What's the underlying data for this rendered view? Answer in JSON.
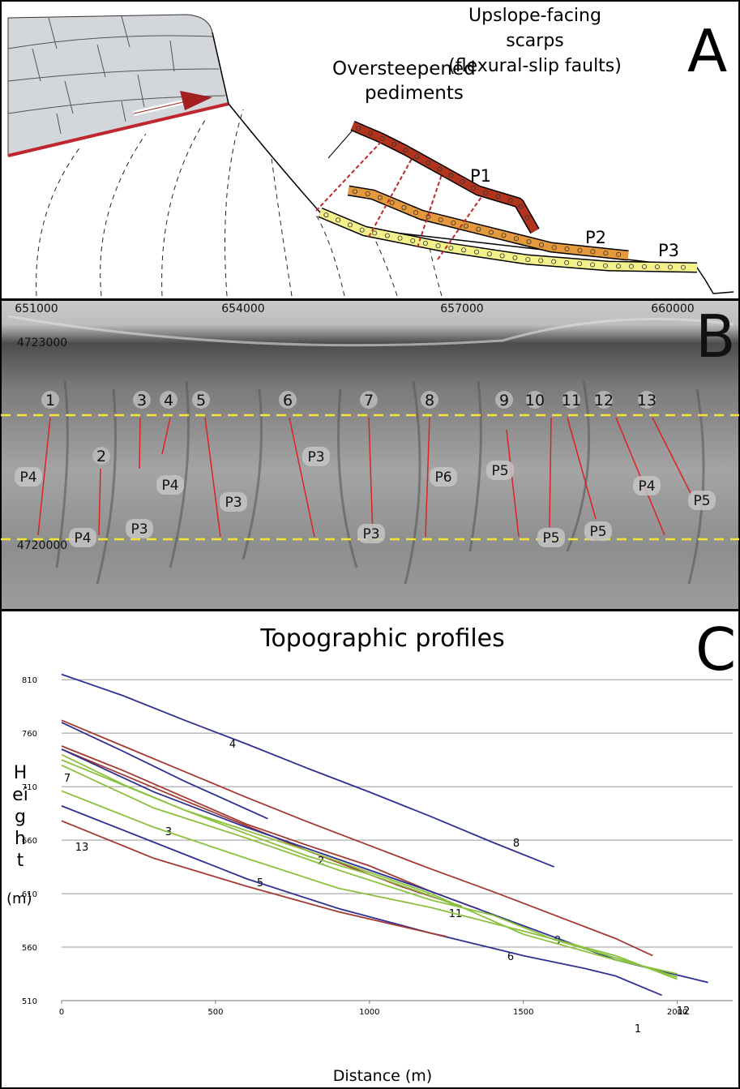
{
  "panel_a": {
    "letter": "A",
    "label_pediments": [
      "Oversteepened",
      "pediments"
    ],
    "label_scarps": [
      "Upslope-facing",
      "scarps",
      "(flexural-slip faults)"
    ],
    "pediments": [
      "P1",
      "P2",
      "P3"
    ]
  },
  "panel_b": {
    "letter": "B",
    "easting_labels": [
      "651000",
      "654000",
      "657000",
      "660000"
    ],
    "northing_labels": [
      "4723000",
      "4720000"
    ],
    "profiles": [
      "1",
      "2",
      "3",
      "4",
      "5",
      "6",
      "7",
      "8",
      "9",
      "10",
      "11",
      "12",
      "13"
    ],
    "units": [
      "P4",
      "P4",
      "P3",
      "P4",
      "P3",
      "P3",
      "P3",
      "P6",
      "P5",
      "P5",
      "P5",
      "P4",
      "P5"
    ]
  },
  "chart_data": {
    "type": "line",
    "panel_letter": "C",
    "title": "Topographic profiles",
    "x_label": "Distance (m)",
    "y_label": "Height",
    "y_label_unit": "(m)",
    "xlim": [
      0,
      2180
    ],
    "ylim": [
      510,
      820
    ],
    "xticks": [
      0,
      500,
      1000,
      1500,
      2000
    ],
    "yticks": [
      510,
      560,
      610,
      660,
      710,
      760,
      810
    ],
    "grid": true,
    "series": [
      {
        "name": "8",
        "color": "#2e3192",
        "x": [
          0,
          200,
          400,
          600,
          800,
          1000,
          1200,
          1400,
          1600
        ],
        "values": [
          815,
          795,
          772,
          750,
          727,
          705,
          682,
          658,
          635
        ]
      },
      {
        "name": "4",
        "color": "#2e3192",
        "x": [
          0,
          200,
          400,
          670
        ],
        "values": [
          770,
          743,
          715,
          680
        ]
      },
      {
        "name": "9",
        "color": "#a33a33",
        "x": [
          0,
          200,
          400,
          600,
          800,
          1000,
          1200,
          1400,
          1600,
          1800,
          1920
        ],
        "values": [
          772,
          748,
          724,
          700,
          677,
          655,
          633,
          612,
          590,
          568,
          552
        ]
      },
      {
        "name": "11",
        "color": "#a33a33",
        "x": [
          0,
          200,
          400,
          600,
          800,
          1000,
          1200,
          1360
        ],
        "values": [
          748,
          725,
          700,
          675,
          655,
          636,
          612,
          595
        ]
      },
      {
        "name": "2",
        "color": "#a33a33",
        "x": [
          0,
          400,
          800,
          1100,
          1300
        ],
        "values": [
          745,
          697,
          650,
          617,
          598
        ]
      },
      {
        "name": "12",
        "color": "#2e3192",
        "x": [
          0,
          300,
          600,
          900,
          1200,
          1500,
          1800,
          2100
        ],
        "values": [
          745,
          705,
          672,
          642,
          612,
          580,
          548,
          527
        ]
      },
      {
        "name": "7",
        "color": "#8cc03f",
        "x": [
          0,
          200,
          400,
          600,
          800,
          1000,
          1200,
          1300
        ],
        "values": [
          740,
          712,
          688,
          666,
          645,
          628,
          608,
          597
        ]
      },
      {
        "name": "3",
        "color": "#8cc03f",
        "x": [
          0,
          300,
          600,
          900,
          1200,
          1400,
          1600,
          1800,
          2000
        ],
        "values": [
          730,
          690,
          662,
          632,
          604,
          590,
          567,
          550,
          532
        ]
      },
      {
        "name": "5",
        "color": "#8cc03f",
        "x": [
          0,
          300,
          600,
          900,
          1200,
          1500,
          1800,
          2000
        ],
        "values": [
          706,
          672,
          643,
          615,
          597,
          575,
          552,
          530
        ]
      },
      {
        "name": "6",
        "color": "#8cc03f",
        "x": [
          0,
          400,
          800,
          1200,
          1500,
          1800,
          2000
        ],
        "values": [
          735,
          688,
          650,
          610,
          572,
          548,
          535
        ]
      },
      {
        "name": "1",
        "color": "#2e3192",
        "x": [
          0,
          300,
          600,
          900,
          1200,
          1500,
          1700,
          1800,
          1950
        ],
        "values": [
          692,
          658,
          624,
          596,
          573,
          552,
          540,
          533,
          515
        ]
      },
      {
        "name": "13",
        "color": "#a33a33",
        "x": [
          0,
          300,
          600,
          900,
          1200,
          1250
        ],
        "values": [
          678,
          643,
          617,
          593,
          573,
          570
        ]
      }
    ]
  }
}
